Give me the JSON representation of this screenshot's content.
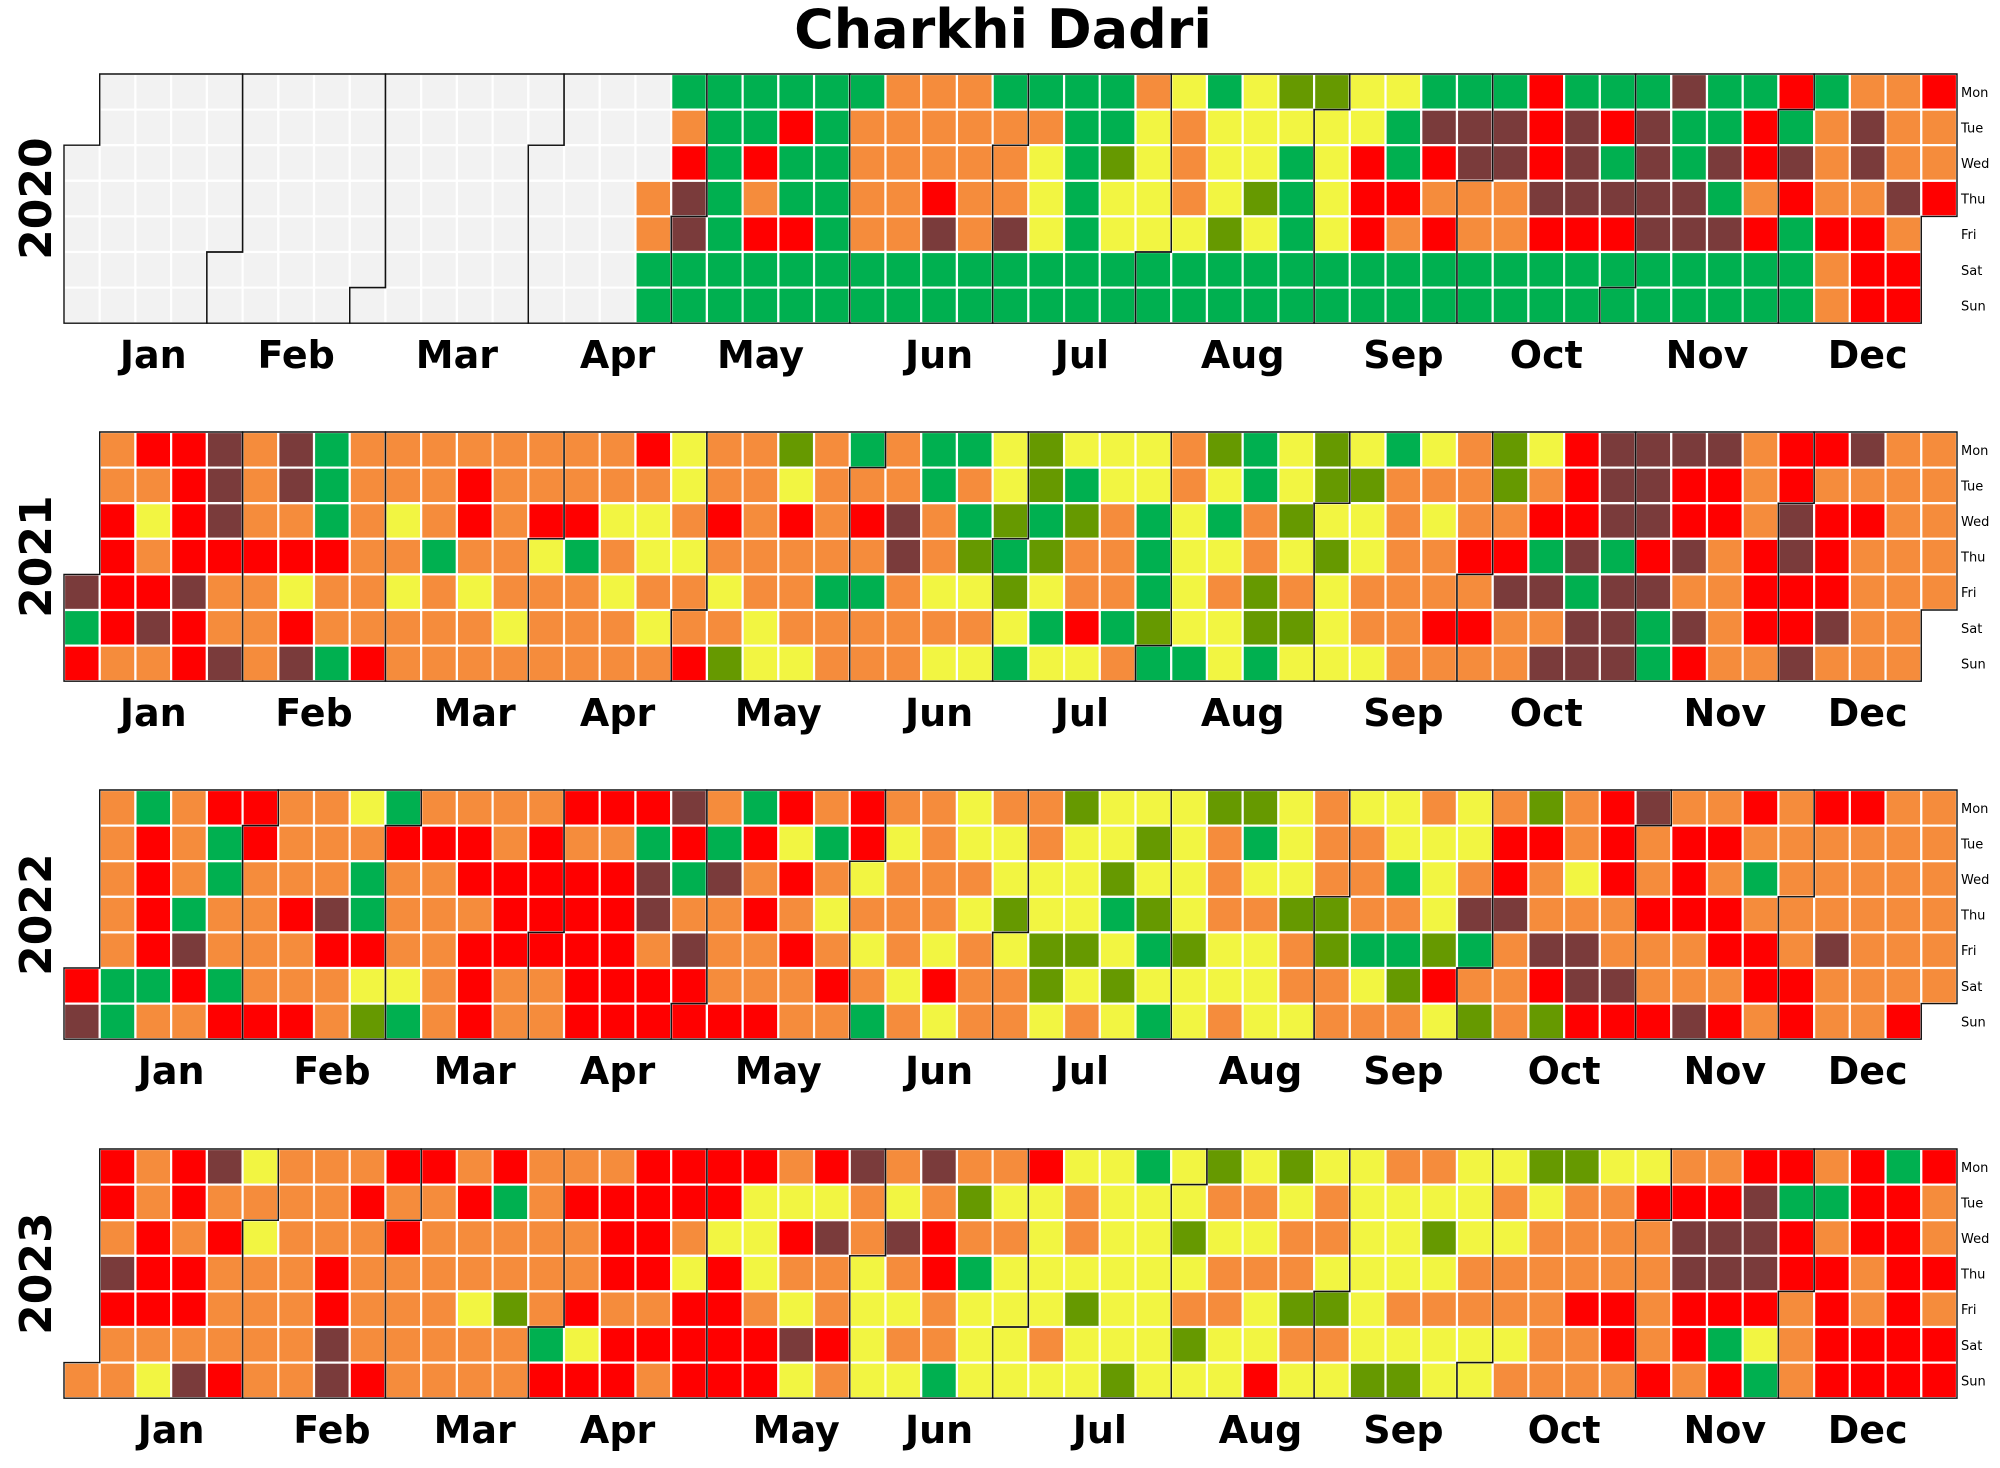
{
  "chart_data": {
    "type": "heatmap",
    "title": "Charkhi Dadri",
    "day_labels": [
      "Mon",
      "Tue",
      "Wed",
      "Thu",
      "Fri",
      "Sat",
      "Sun"
    ],
    "month_labels": [
      "Jan",
      "Feb",
      "Mar",
      "Apr",
      "May",
      "Jun",
      "Jul",
      "Aug",
      "Sep",
      "Oct",
      "Nov",
      "Dec"
    ],
    "no_data_color": "#f2f2f2",
    "category_colors": {
      "G": "#00b050",
      "S": "#669900",
      "Y": "#f2f542",
      "O": "#f58c3c",
      "R": "#ff0000",
      "B": "#7a3b3b",
      "N": "#f2f2f2"
    },
    "years": [
      {
        "year": "2020",
        "rows": {
          "Mon": "NNNNNNNNNNNNNNNNNGGGGGGOOOGGGGOYGYSSYYGGGRGGGBGGRGOOR",
          "Tue": "NNNNNNNNNNNNNNNNNOGGRGOOOOOOGGYOYYYYYGBBBRBRBGGRGOBO",
          "Wed": "NNNNNNNNNNNNNNNNNRGRGGOOOOOYGSYOYYGYRGRBBRBGBGBRBOBO",
          "Thu": "NNNNNNNNNNNNNNNNOBGOGGOOROOYGYYOYSGYRROOOBBBBBGOROOBR",
          "Fri": "NNNNNNNNNNNNNNNNOBGRRGOOBOBYGYYYSYGYROROORRRBBBRGRROR",
          "Sat": "NNNNNNNNNNNNNNNNGGGGGGGGGGGGGGGGGGGGGGGGGGGGGGGGGORROR",
          "Sun": "NNNNNNNNNNNNNNNNGGGGGGGGGGGGGGGGGGGGGGGGGGGGGGGGGORROR"
        }
      },
      {
        "year": "2021",
        "rows": {
          "Mon": "GORRBOBGOOOOOOOORYOOSOGOGGYSYYYOSGYSYGYOSYRBBBBORRB",
          "Tue": "GOORBOBGOOOROOOOOYOOYOOOGOYSGYYOYGYSSOOOSORBBRROROO",
          "Wed": "YRYRBOOGOYORORRYYORORORBOGSGSOGYGOSYYOYOORRBBRROBRR",
          "Thu": "ORORRRRROOGOOYGOYYOOOOOBOSGSOOGYYOYSYOORRGBGRBORBR",
          "Fri": "BRRBOOYOOYOYOOOYOOYOOGGOYYSYOOGYOSOYOOOOBBGBBOORRR",
          "Sat": "GRBROOROOOOOYOOOYOOYOOOOOOYGRGSYYSSYOORROOBBGBORRB",
          "Sun": "ROORBOBGROOOOOOOORSYYOOOYYGYYOGGYGYYYOOOOBBBGROOB"
        }
      },
      {
        "year": "2022",
        "rows": {
          "Mon": "BOGORROOYGOOOORRRBOGROROOYOOSYYYSSYOYYOYOSORBOORORRO",
          "Tue": "ROROGROOORRROROOGRGRYGRYOYYOYYSYOGYOOYYYRRORORROOO",
          "Wed": "ROROGOOOGOORRRRRBGBOROYOOOYYYSYYOYYOOGYOROYROROGOO",
          "Thu": "RORGOORBGOOORRRRBOOROYOOOYSYYGSYOOSSOOYBBOOORRROOO",
          "Fri": "OORBOOORROORRRRROBOOROYOYOYSSYGSYYOSGGSGOBBOOORROB",
          "Sat": "RGGRGOOOYYOROORRRROOOROYROOSYSYYYYOOYSROORBBOOORRO",
          "Sun": "BGOORRROSGOROORRRRRROOGOYOOYOYGYOYYOOOYSOSRRRBROROOR"
        }
      },
      {
        "year": "2023",
        "rows": {
          "Mon": "ORORBYOOORROROOORRRRORBOBOORYYGYSYSYYOOYYSSYYOORRORGROOR",
          "Tue": "RROROOOOROORGORRRRRYYYOYOSYYOYYYOOYOYYYYOYOORRRBGGRROR",
          "Wed": "RORORYOOOROOOOORROYYRBOBROOYOYYSYYOOYYSYYOOOOBBBRORROR",
          "Thu": "RBRROOOROOOOOOORRYRYOOYORGYYYYYYOOOYYYYOOOOOOBBBRRORRO",
          "Fri": "ORRROOOROOOYSOROORROYOYYOYYYSYYOOYSSYOOOOORRORRROROR",
          "Sat": "OOOOOOOBOOOOOGYRRRRRBRYOOYYOYYYSYYOOYYYYYOORORGYORRRRROR",
          "Sun": "OOYBROOBROOOORRRORRRYOYYGYYYYSYYYRYYSSYYOOOORORGORRRRO"
        }
      }
    ]
  }
}
